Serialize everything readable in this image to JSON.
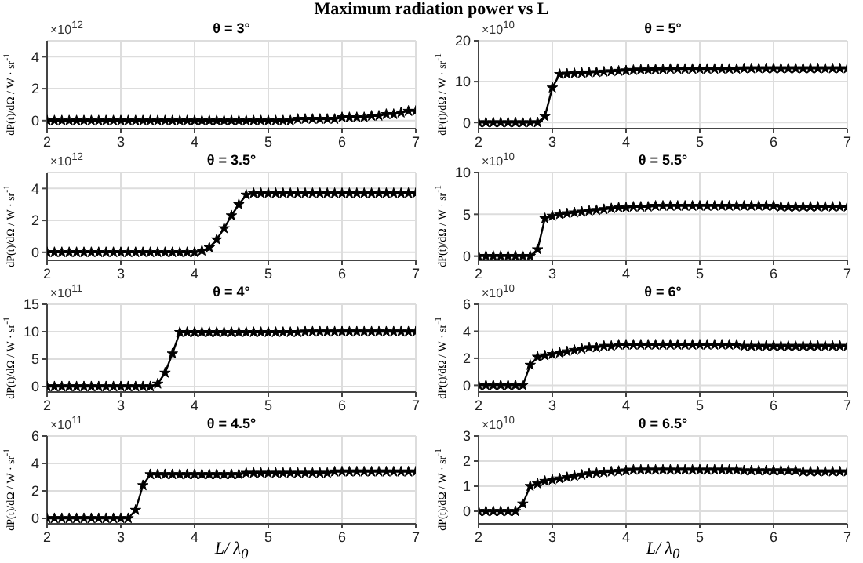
{
  "chart_data": [
    {
      "type": "line",
      "title": "θ = 3°",
      "ylabel": "dP(t)/dΩ / W · sr$^{-1}$",
      "annotations": [
        "×10$^{12}$",
        "Maximum radiation power vs  L"
      ],
      "xlim": [
        2,
        7
      ],
      "xticks": [
        2,
        3,
        4,
        5,
        6,
        7
      ],
      "ylim": [
        -0.5,
        5
      ],
      "yticks": [
        0,
        2,
        4
      ],
      "grid": true,
      "marker": "star",
      "x": [
        2,
        2.1,
        2.2,
        2.3,
        2.4,
        2.5,
        2.6,
        2.7,
        2.8,
        2.9,
        3,
        3.1,
        3.2,
        3.3,
        3.4,
        3.5,
        3.6,
        3.7,
        3.8,
        3.9,
        4,
        4.1,
        4.2,
        4.3,
        4.4,
        4.5,
        4.6,
        4.7,
        4.8,
        4.9,
        5,
        5.1,
        5.2,
        5.3,
        5.4,
        5.5,
        5.6,
        5.7,
        5.8,
        5.9,
        6,
        6.1,
        6.2,
        6.3,
        6.4,
        6.5,
        6.6,
        6.7,
        6.8,
        6.9,
        7
      ],
      "series": [
        {
          "color": "#000000",
          "values": [
            0,
            0,
            0,
            0,
            0,
            0,
            0,
            0,
            0,
            0,
            0,
            0,
            0,
            0,
            0,
            0,
            0,
            0,
            0,
            0,
            0,
            0,
            0,
            0,
            0,
            0,
            0,
            0,
            0,
            0,
            0,
            0,
            0,
            0,
            0.1,
            0.1,
            0.1,
            0.1,
            0.1,
            0.1,
            0.2,
            0.2,
            0.2,
            0.2,
            0.3,
            0.3,
            0.4,
            0.4,
            0.5,
            0.6,
            0.6
          ]
        }
      ]
    },
    {
      "type": "line",
      "title": "θ = 5°",
      "ylabel": "dP(t)/dΩ / W · sr$^{-1}$",
      "annotations": [
        "×10$^{10}$"
      ],
      "xlim": [
        2,
        7
      ],
      "xticks": [
        2,
        3,
        4,
        5,
        6,
        7
      ],
      "ylim": [
        -1.5,
        20
      ],
      "yticks": [
        0,
        10,
        20
      ],
      "grid": true,
      "marker": "star",
      "x": [
        2,
        2.1,
        2.2,
        2.3,
        2.4,
        2.5,
        2.6,
        2.7,
        2.8,
        2.9,
        3,
        3.1,
        3.2,
        3.3,
        3.4,
        3.5,
        3.6,
        3.7,
        3.8,
        3.9,
        4,
        4.1,
        4.2,
        4.3,
        4.4,
        4.5,
        4.6,
        4.7,
        4.8,
        4.9,
        5,
        5.1,
        5.2,
        5.3,
        5.4,
        5.5,
        5.6,
        5.7,
        5.8,
        5.9,
        6,
        6.1,
        6.2,
        6.3,
        6.4,
        6.5,
        6.6,
        6.7,
        6.8,
        6.9,
        7
      ],
      "series": [
        {
          "color": "#000000",
          "values": [
            0,
            0,
            0,
            0,
            0,
            0,
            0,
            0,
            0,
            1.5,
            8.5,
            11.8,
            11.9,
            12,
            12.1,
            12.2,
            12.3,
            12.4,
            12.5,
            12.6,
            12.7,
            12.8,
            12.9,
            12.9,
            13,
            13,
            13.1,
            13.1,
            13.1,
            13.1,
            13.1,
            13.1,
            13.1,
            13.1,
            13.1,
            13.1,
            13.2,
            13.2,
            13.2,
            13.2,
            13.2,
            13.2,
            13.2,
            13.2,
            13.2,
            13.2,
            13.2,
            13.2,
            13.2,
            13.2,
            13.2
          ]
        }
      ]
    },
    {
      "type": "line",
      "title": "θ = 3.5°",
      "ylabel": "dP(t)/dΩ / W · sr$^{-1}$",
      "annotations": [
        "×10$^{12}$"
      ],
      "xlim": [
        2,
        7
      ],
      "xticks": [
        2,
        3,
        4,
        5,
        6,
        7
      ],
      "ylim": [
        -0.5,
        5
      ],
      "yticks": [
        0,
        2,
        4
      ],
      "grid": true,
      "marker": "star",
      "x": [
        2,
        2.1,
        2.2,
        2.3,
        2.4,
        2.5,
        2.6,
        2.7,
        2.8,
        2.9,
        3,
        3.1,
        3.2,
        3.3,
        3.4,
        3.5,
        3.6,
        3.7,
        3.8,
        3.9,
        4,
        4.1,
        4.2,
        4.3,
        4.4,
        4.5,
        4.6,
        4.7,
        4.8,
        4.9,
        5,
        5.1,
        5.2,
        5.3,
        5.4,
        5.5,
        5.6,
        5.7,
        5.8,
        5.9,
        6,
        6.1,
        6.2,
        6.3,
        6.4,
        6.5,
        6.6,
        6.7,
        6.8,
        6.9,
        7
      ],
      "series": [
        {
          "color": "#000000",
          "values": [
            0,
            0,
            0,
            0,
            0,
            0,
            0,
            0,
            0,
            0,
            0,
            0,
            0,
            0,
            0,
            0,
            0,
            0,
            0,
            0,
            0,
            0.1,
            0.3,
            0.8,
            1.5,
            2.3,
            3,
            3.6,
            3.7,
            3.7,
            3.7,
            3.7,
            3.7,
            3.7,
            3.7,
            3.7,
            3.7,
            3.7,
            3.7,
            3.7,
            3.7,
            3.7,
            3.7,
            3.7,
            3.7,
            3.7,
            3.7,
            3.7,
            3.7,
            3.7,
            3.7
          ]
        }
      ]
    },
    {
      "type": "line",
      "title": "θ = 5.5°",
      "ylabel": "dP(t)/dΩ / W · sr$^{-1}$",
      "annotations": [
        "×10$^{10}$"
      ],
      "xlim": [
        2,
        7
      ],
      "xticks": [
        2,
        3,
        4,
        5,
        6,
        7
      ],
      "ylim": [
        -0.5,
        10
      ],
      "yticks": [
        0,
        5,
        10
      ],
      "grid": true,
      "marker": "star",
      "x": [
        2,
        2.1,
        2.2,
        2.3,
        2.4,
        2.5,
        2.6,
        2.7,
        2.8,
        2.9,
        3,
        3.1,
        3.2,
        3.3,
        3.4,
        3.5,
        3.6,
        3.7,
        3.8,
        3.9,
        4,
        4.1,
        4.2,
        4.3,
        4.4,
        4.5,
        4.6,
        4.7,
        4.8,
        4.9,
        5,
        5.1,
        5.2,
        5.3,
        5.4,
        5.5,
        5.6,
        5.7,
        5.8,
        5.9,
        6,
        6.1,
        6.2,
        6.3,
        6.4,
        6.5,
        6.6,
        6.7,
        6.8,
        6.9,
        7
      ],
      "series": [
        {
          "color": "#000000",
          "values": [
            0,
            0,
            0,
            0,
            0,
            0,
            0,
            0,
            0.8,
            4.5,
            4.8,
            5,
            5.1,
            5.2,
            5.3,
            5.4,
            5.5,
            5.6,
            5.7,
            5.8,
            5.8,
            5.9,
            5.9,
            5.9,
            6,
            6,
            6,
            6,
            6,
            6,
            6,
            6,
            6,
            6,
            6,
            6,
            6,
            6,
            6,
            6,
            6,
            5.9,
            5.9,
            5.9,
            5.9,
            5.9,
            5.9,
            5.9,
            5.9,
            5.9,
            5.9
          ]
        }
      ]
    },
    {
      "type": "line",
      "title": "θ = 4°",
      "ylabel": "dP(t)/dΩ / W · sr$^{-1}$",
      "annotations": [
        "×10$^{11}$"
      ],
      "xlim": [
        2,
        7
      ],
      "xticks": [
        2,
        3,
        4,
        5,
        6,
        7
      ],
      "ylim": [
        -1,
        15
      ],
      "yticks": [
        0,
        5,
        10,
        15
      ],
      "grid": true,
      "marker": "star",
      "x": [
        2,
        2.1,
        2.2,
        2.3,
        2.4,
        2.5,
        2.6,
        2.7,
        2.8,
        2.9,
        3,
        3.1,
        3.2,
        3.3,
        3.4,
        3.5,
        3.6,
        3.7,
        3.8,
        3.9,
        4,
        4.1,
        4.2,
        4.3,
        4.4,
        4.5,
        4.6,
        4.7,
        4.8,
        4.9,
        5,
        5.1,
        5.2,
        5.3,
        5.4,
        5.5,
        5.6,
        5.7,
        5.8,
        5.9,
        6,
        6.1,
        6.2,
        6.3,
        6.4,
        6.5,
        6.6,
        6.7,
        6.8,
        6.9,
        7
      ],
      "series": [
        {
          "color": "#000000",
          "values": [
            0,
            0,
            0,
            0,
            0,
            0,
            0,
            0,
            0,
            0,
            0,
            0,
            0,
            0,
            0,
            0.5,
            2.5,
            6,
            9.9,
            9.9,
            9.9,
            9.9,
            9.9,
            9.9,
            9.9,
            9.9,
            9.9,
            9.9,
            9.9,
            9.9,
            9.9,
            9.9,
            9.9,
            9.9,
            9.9,
            10,
            10,
            10,
            10,
            10,
            10,
            10,
            10,
            10,
            10,
            10,
            10,
            10,
            10,
            10,
            10
          ]
        }
      ]
    },
    {
      "type": "line",
      "title": "θ = 6°",
      "ylabel": "dP(t)/dΩ / W · sr$^{-1}$",
      "annotations": [
        "×10$^{10}$"
      ],
      "xlim": [
        2,
        7
      ],
      "xticks": [
        2,
        3,
        4,
        5,
        6,
        7
      ],
      "ylim": [
        -0.5,
        6
      ],
      "yticks": [
        0,
        2,
        4,
        6
      ],
      "grid": true,
      "marker": "star",
      "x": [
        2,
        2.1,
        2.2,
        2.3,
        2.4,
        2.5,
        2.6,
        2.7,
        2.8,
        2.9,
        3,
        3.1,
        3.2,
        3.3,
        3.4,
        3.5,
        3.6,
        3.7,
        3.8,
        3.9,
        4,
        4.1,
        4.2,
        4.3,
        4.4,
        4.5,
        4.6,
        4.7,
        4.8,
        4.9,
        5,
        5.1,
        5.2,
        5.3,
        5.4,
        5.5,
        5.6,
        5.7,
        5.8,
        5.9,
        6,
        6.1,
        6.2,
        6.3,
        6.4,
        6.5,
        6.6,
        6.7,
        6.8,
        6.9,
        7
      ],
      "series": [
        {
          "color": "#000000",
          "values": [
            0,
            0,
            0,
            0,
            0,
            0,
            0,
            1.5,
            2.1,
            2.2,
            2.3,
            2.4,
            2.5,
            2.6,
            2.7,
            2.8,
            2.8,
            2.9,
            2.9,
            3,
            3,
            3,
            3,
            3,
            3,
            3,
            3,
            3,
            3,
            3,
            3,
            3,
            3,
            3,
            3,
            3,
            2.9,
            2.9,
            2.9,
            2.9,
            2.9,
            2.9,
            2.9,
            2.9,
            2.9,
            2.9,
            2.9,
            2.9,
            2.9,
            2.9,
            2.9
          ]
        }
      ]
    },
    {
      "type": "line",
      "title": "θ = 4.5°",
      "ylabel": "dP(t)/dΩ / W · sr$^{-1}$",
      "xlabel": "L/ λ$_{0}$",
      "annotations": [
        "×10$^{11}$"
      ],
      "xlim": [
        2,
        7
      ],
      "xticks": [
        2,
        3,
        4,
        5,
        6,
        7
      ],
      "ylim": [
        -0.4,
        6
      ],
      "yticks": [
        0,
        2,
        4,
        6
      ],
      "grid": true,
      "marker": "star",
      "x": [
        2,
        2.1,
        2.2,
        2.3,
        2.4,
        2.5,
        2.6,
        2.7,
        2.8,
        2.9,
        3,
        3.1,
        3.2,
        3.3,
        3.4,
        3.5,
        3.6,
        3.7,
        3.8,
        3.9,
        4,
        4.1,
        4.2,
        4.3,
        4.4,
        4.5,
        4.6,
        4.7,
        4.8,
        4.9,
        5,
        5.1,
        5.2,
        5.3,
        5.4,
        5.5,
        5.6,
        5.7,
        5.8,
        5.9,
        6,
        6.1,
        6.2,
        6.3,
        6.4,
        6.5,
        6.6,
        6.7,
        6.8,
        6.9,
        7
      ],
      "series": [
        {
          "color": "#000000",
          "values": [
            0,
            0,
            0,
            0,
            0,
            0,
            0,
            0,
            0,
            0,
            0,
            0,
            0.6,
            2.4,
            3.2,
            3.2,
            3.2,
            3.2,
            3.2,
            3.2,
            3.2,
            3.2,
            3.2,
            3.2,
            3.2,
            3.2,
            3.2,
            3.3,
            3.3,
            3.3,
            3.3,
            3.3,
            3.3,
            3.3,
            3.3,
            3.3,
            3.3,
            3.3,
            3.3,
            3.4,
            3.4,
            3.4,
            3.4,
            3.4,
            3.4,
            3.4,
            3.4,
            3.4,
            3.4,
            3.4,
            3.4
          ]
        }
      ]
    },
    {
      "type": "line",
      "title": "θ = 6.5°",
      "ylabel": "dP(t)/dΩ / W · sr$^{-1}$",
      "xlabel": "L/ λ$_{0}$",
      "annotations": [
        "×10$^{10}$"
      ],
      "xlim": [
        2,
        7
      ],
      "xticks": [
        2,
        3,
        4,
        5,
        6,
        7
      ],
      "ylim": [
        -0.5,
        3
      ],
      "yticks": [
        0,
        1,
        2,
        3
      ],
      "grid": true,
      "marker": "star",
      "x": [
        2,
        2.1,
        2.2,
        2.3,
        2.4,
        2.5,
        2.6,
        2.7,
        2.8,
        2.9,
        3,
        3.1,
        3.2,
        3.3,
        3.4,
        3.5,
        3.6,
        3.7,
        3.8,
        3.9,
        4,
        4.1,
        4.2,
        4.3,
        4.4,
        4.5,
        4.6,
        4.7,
        4.8,
        4.9,
        5,
        5.1,
        5.2,
        5.3,
        5.4,
        5.5,
        5.6,
        5.7,
        5.8,
        5.9,
        6,
        6.1,
        6.2,
        6.3,
        6.4,
        6.5,
        6.6,
        6.7,
        6.8,
        6.9,
        7
      ],
      "series": [
        {
          "color": "#000000",
          "values": [
            0,
            0,
            0,
            0,
            0,
            0,
            0.3,
            1,
            1.1,
            1.2,
            1.25,
            1.3,
            1.35,
            1.4,
            1.45,
            1.5,
            1.52,
            1.55,
            1.58,
            1.6,
            1.62,
            1.65,
            1.65,
            1.65,
            1.65,
            1.65,
            1.65,
            1.65,
            1.65,
            1.65,
            1.65,
            1.65,
            1.65,
            1.65,
            1.65,
            1.65,
            1.62,
            1.62,
            1.62,
            1.62,
            1.62,
            1.62,
            1.62,
            1.62,
            1.58,
            1.58,
            1.58,
            1.58,
            1.58,
            1.58,
            1.58
          ]
        }
      ]
    }
  ]
}
